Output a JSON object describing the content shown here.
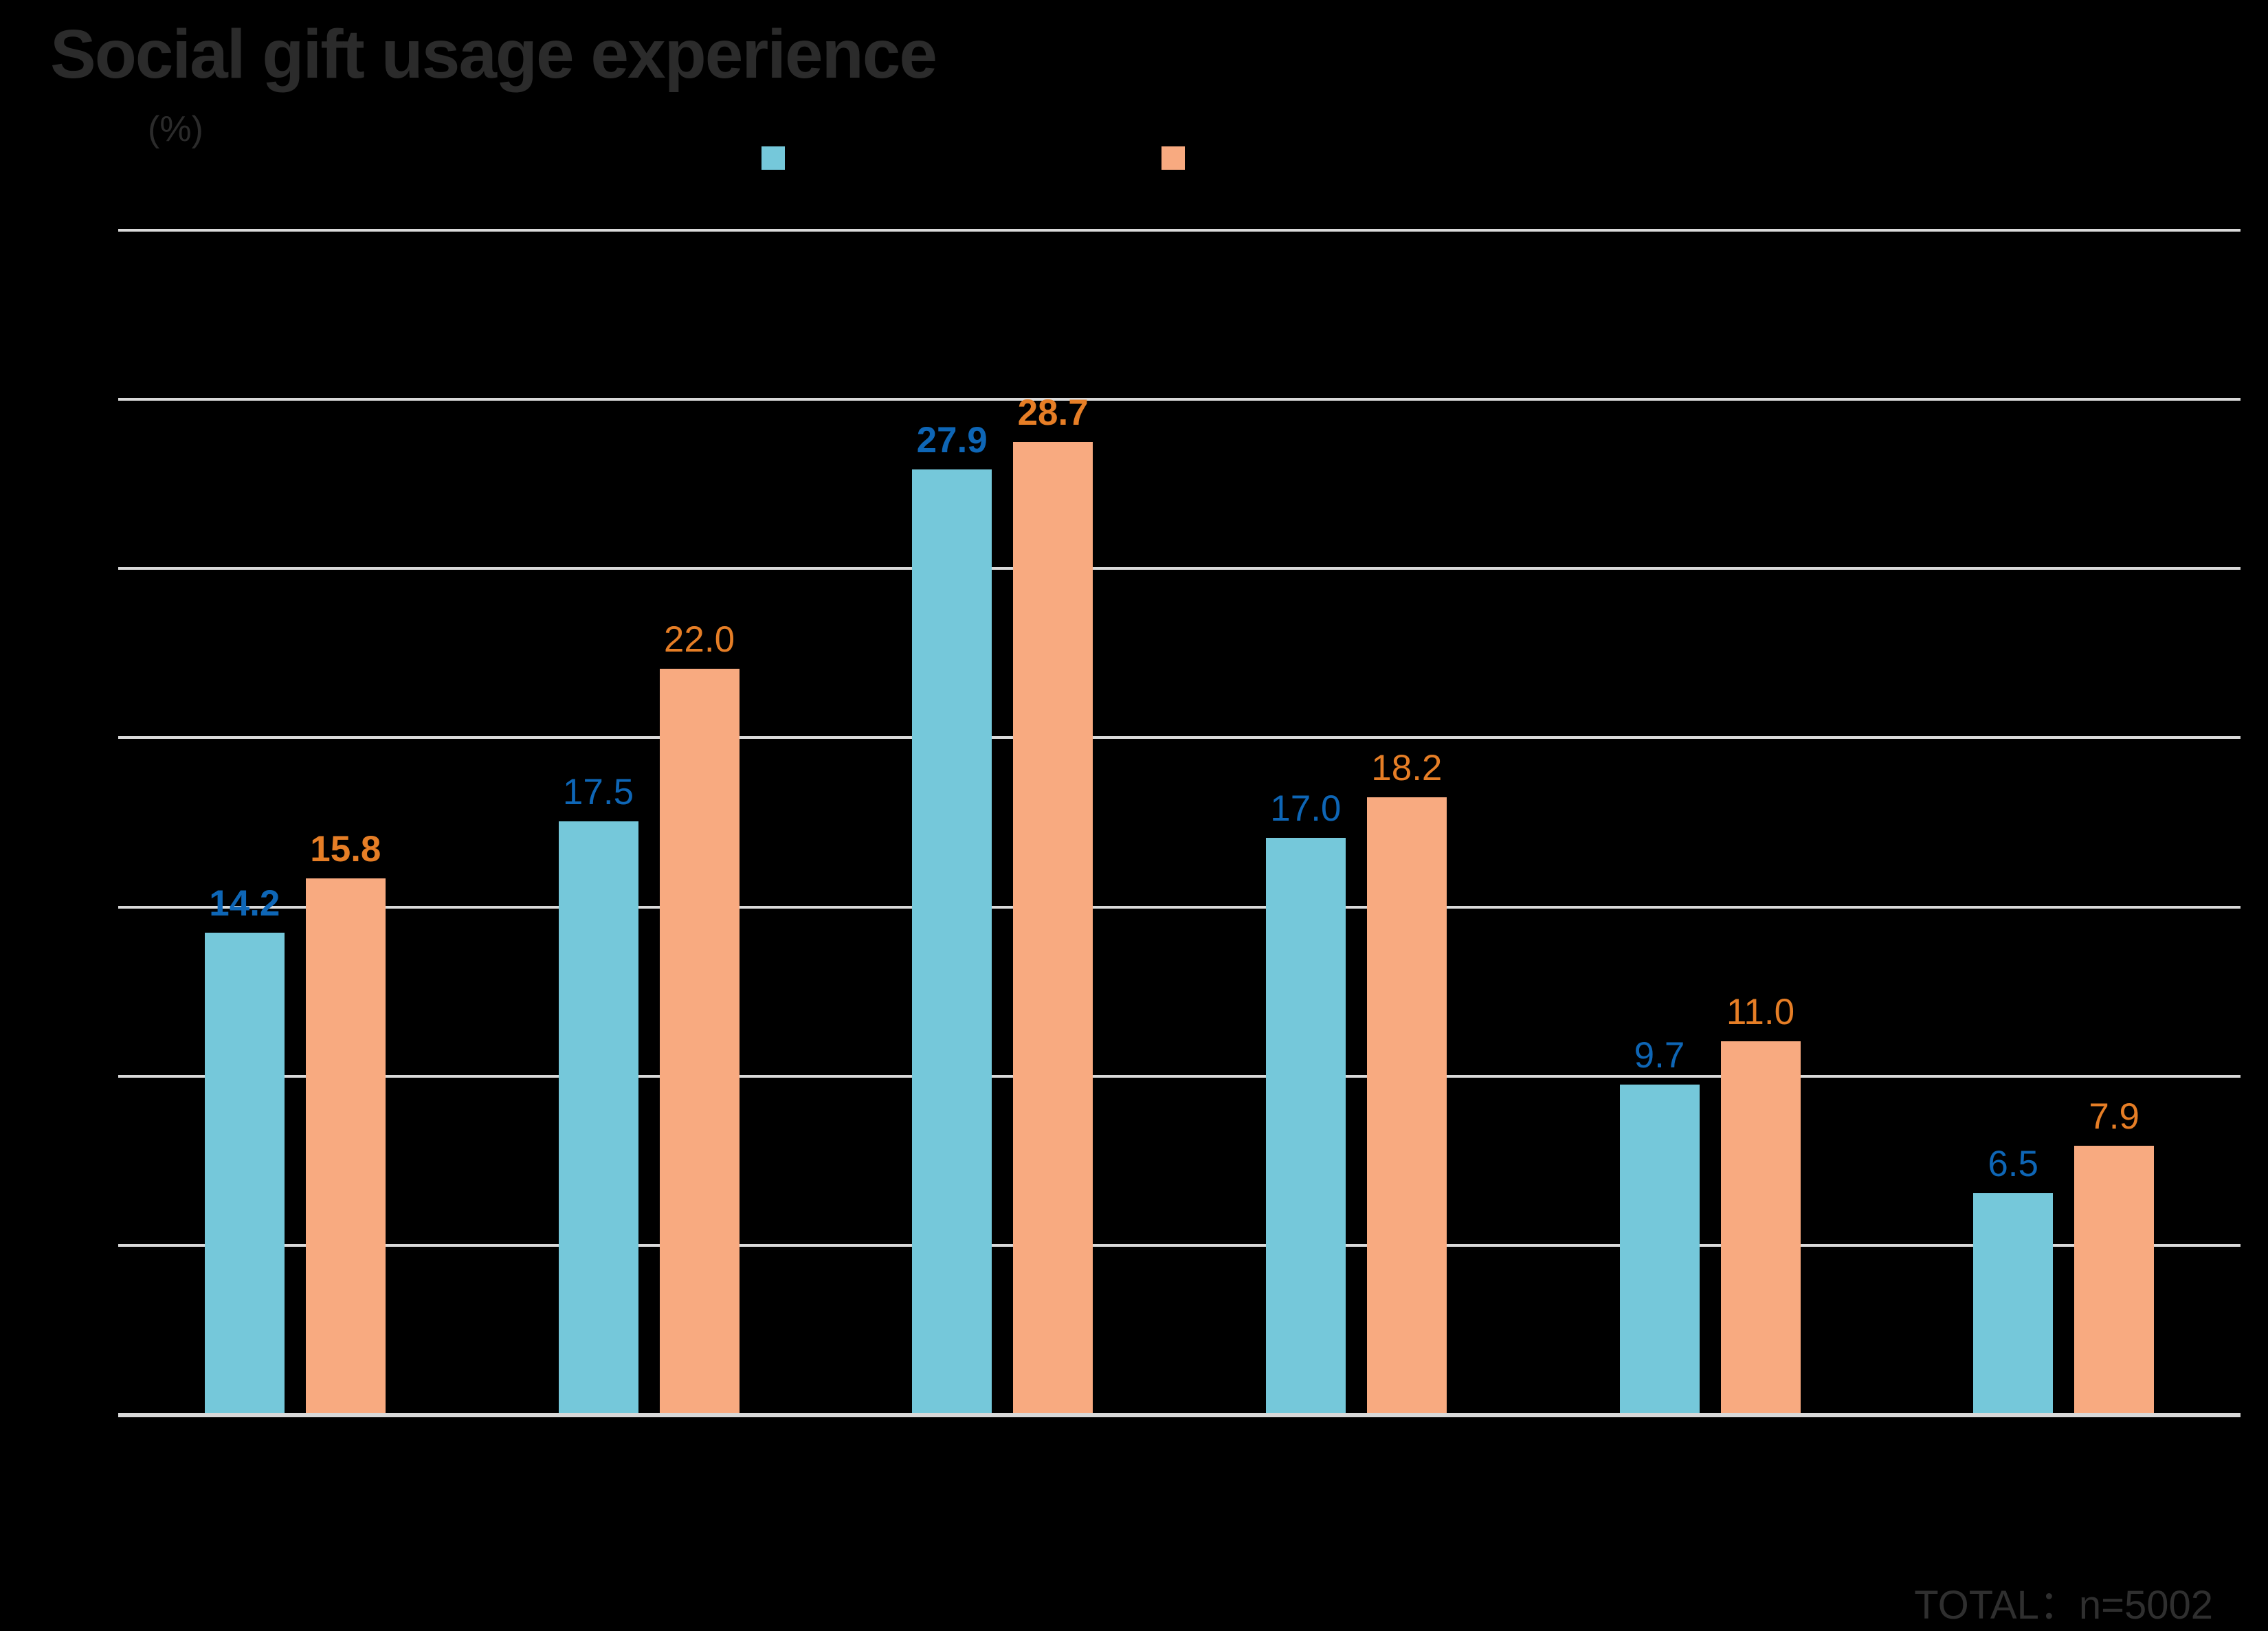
{
  "page": {
    "title": "Social gift usage experience",
    "unit_label": "(%)",
    "footnote": "TOTAL：n=5002"
  },
  "chart_data": {
    "type": "bar",
    "title": "Social gift usage experience",
    "unit": "%",
    "categories": [
      "",
      "",
      "",
      "",
      "",
      ""
    ],
    "series": [
      {
        "name": "",
        "bar_color": "#75C8DA",
        "label_color": "#0E66B6",
        "values": [
          14.2,
          17.5,
          27.9,
          17.0,
          9.7,
          6.5
        ]
      },
      {
        "name": "",
        "bar_color": "#F8AA80",
        "label_color": "#E67E26",
        "values": [
          15.8,
          22.0,
          28.7,
          18.2,
          11.0,
          7.9
        ]
      }
    ],
    "ylim": [
      0,
      35
    ],
    "gridline_step": 5,
    "grid": true,
    "legend_position": "top-center",
    "value_labels": true,
    "value_label_decimals": 1,
    "bold_label_groups": [
      0,
      2
    ],
    "footnote": "TOTAL：n=5002"
  },
  "colors": {
    "background": "#000000",
    "gridline": "#D9D9D9",
    "title_text": "#2B2B2B",
    "footnote_text": "#2F2F2F"
  }
}
